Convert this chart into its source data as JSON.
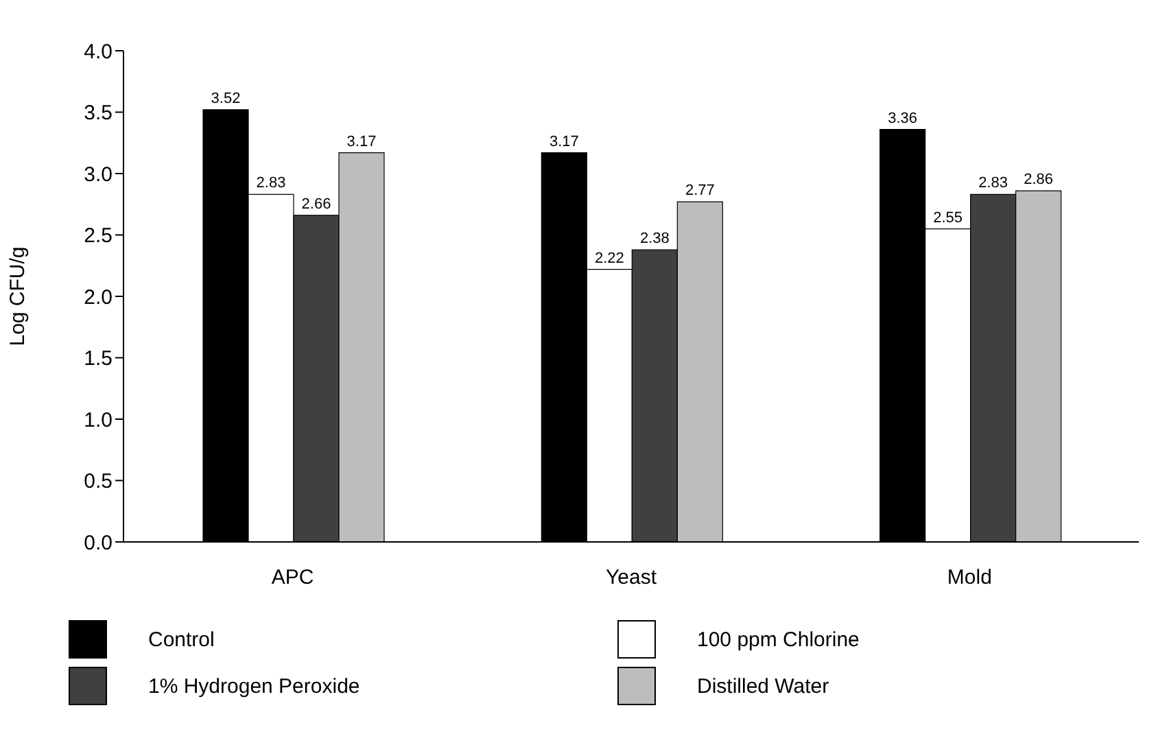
{
  "chart_data": {
    "type": "bar",
    "ylabel": "Log CFU/g",
    "categories": [
      "APC",
      "Yeast",
      "Mold"
    ],
    "series": [
      {
        "name": "Control",
        "color": "#000000",
        "values": [
          3.52,
          3.17,
          3.36
        ]
      },
      {
        "name": "100 ppm Chlorine",
        "color": "#ffffff",
        "values": [
          2.83,
          2.22,
          2.55
        ]
      },
      {
        "name": "1% Hydrogen Peroxide",
        "color": "#404040",
        "values": [
          2.66,
          2.38,
          2.83
        ]
      },
      {
        "name": "Distilled Water",
        "color": "#bdbdbd",
        "values": [
          3.17,
          2.77,
          2.86
        ]
      }
    ],
    "ylim": [
      0,
      4
    ],
    "yticks": [
      {
        "value": 0,
        "label": "0.0"
      },
      {
        "value": 0.5,
        "label": "0.5"
      },
      {
        "value": 1,
        "label": "1.0"
      },
      {
        "value": 1.5,
        "label": "1.5"
      },
      {
        "value": 2,
        "label": "2.0"
      },
      {
        "value": 2.5,
        "label": "2.5"
      },
      {
        "value": 3,
        "label": "3.0"
      },
      {
        "value": 3.5,
        "label": "3.5"
      },
      {
        "value": 4,
        "label": "4.0"
      }
    ],
    "data_labels": true,
    "grid": false,
    "legend": "bottom"
  }
}
